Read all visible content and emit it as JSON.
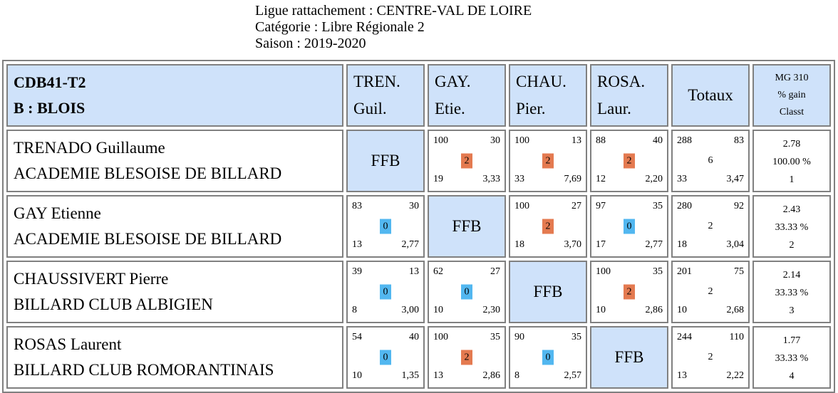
{
  "header": {
    "line1": "Ligue rattachement : CENTRE-VAL DE LOIRE",
    "line2": "Catégorie : Libre Régionale 2",
    "line3": "Saison : 2019-2020"
  },
  "table": {
    "team_code": "CDB41-T2",
    "team_name": "B : BLOIS",
    "col1": [
      "TREN.",
      "Guil."
    ],
    "col2": [
      "GAY.",
      "Etie."
    ],
    "col3": [
      "CHAU.",
      "Pier."
    ],
    "col4": [
      "ROSA.",
      "Laur."
    ],
    "totals": "Totaux",
    "stats_header": [
      "MG 310",
      "% gain",
      "Classt"
    ],
    "ffb": "FFB",
    "rows": [
      {
        "name": "TRENADO Guillaume",
        "club": "ACADEMIE BLESOISE DE BILLARD",
        "cells": [
          null,
          {
            "pts": "100",
            "hs": "30",
            "score": "2",
            "result": "win",
            "rep": "19",
            "avg": "3,33"
          },
          {
            "pts": "100",
            "hs": "13",
            "score": "2",
            "result": "win",
            "rep": "33",
            "avg": "7,69"
          },
          {
            "pts": "88",
            "hs": "40",
            "score": "2",
            "result": "win",
            "rep": "12",
            "avg": "2,20"
          }
        ],
        "totals": {
          "pts": "288",
          "hs": "83",
          "score": "6",
          "rep": "33",
          "avg": "3,47"
        },
        "stats": {
          "mg": "2.78",
          "gain": "100.00 %",
          "rank": "1"
        }
      },
      {
        "name": "GAY Etienne",
        "club": "ACADEMIE BLESOISE DE BILLARD",
        "cells": [
          {
            "pts": "83",
            "hs": "30",
            "score": "0",
            "result": "loss",
            "rep": "13",
            "avg": "2,77"
          },
          null,
          {
            "pts": "100",
            "hs": "27",
            "score": "2",
            "result": "win",
            "rep": "18",
            "avg": "3,70"
          },
          {
            "pts": "97",
            "hs": "35",
            "score": "0",
            "result": "loss",
            "rep": "17",
            "avg": "2,77"
          }
        ],
        "totals": {
          "pts": "280",
          "hs": "92",
          "score": "2",
          "rep": "18",
          "avg": "3,04"
        },
        "stats": {
          "mg": "2.43",
          "gain": "33.33 %",
          "rank": "2"
        }
      },
      {
        "name": "CHAUSSIVERT Pierre",
        "club": "BILLARD CLUB ALBIGIEN",
        "cells": [
          {
            "pts": "39",
            "hs": "13",
            "score": "0",
            "result": "loss",
            "rep": "8",
            "avg": "3,00"
          },
          {
            "pts": "62",
            "hs": "27",
            "score": "0",
            "result": "loss",
            "rep": "10",
            "avg": "2,30"
          },
          null,
          {
            "pts": "100",
            "hs": "35",
            "score": "2",
            "result": "win",
            "rep": "10",
            "avg": "2,86"
          }
        ],
        "totals": {
          "pts": "201",
          "hs": "75",
          "score": "2",
          "rep": "10",
          "avg": "2,68"
        },
        "stats": {
          "mg": "2.14",
          "gain": "33.33 %",
          "rank": "3"
        }
      },
      {
        "name": "ROSAS Laurent",
        "club": "BILLARD CLUB ROMORANTINAIS",
        "cells": [
          {
            "pts": "54",
            "hs": "40",
            "score": "0",
            "result": "loss",
            "rep": "10",
            "avg": "1,35"
          },
          {
            "pts": "100",
            "hs": "35",
            "score": "2",
            "result": "win",
            "rep": "13",
            "avg": "2,86"
          },
          {
            "pts": "90",
            "hs": "35",
            "score": "0",
            "result": "loss",
            "rep": "8",
            "avg": "2,57"
          },
          null
        ],
        "totals": {
          "pts": "244",
          "hs": "110",
          "score": "2",
          "rep": "13",
          "avg": "2,22"
        },
        "stats": {
          "mg": "1.77",
          "gain": "33.33 %",
          "rank": "4"
        }
      }
    ]
  },
  "colors": {
    "header_bg": "#cfe2fa",
    "win": "#e47a50",
    "loss": "#52b7f0",
    "border": "#808080"
  }
}
